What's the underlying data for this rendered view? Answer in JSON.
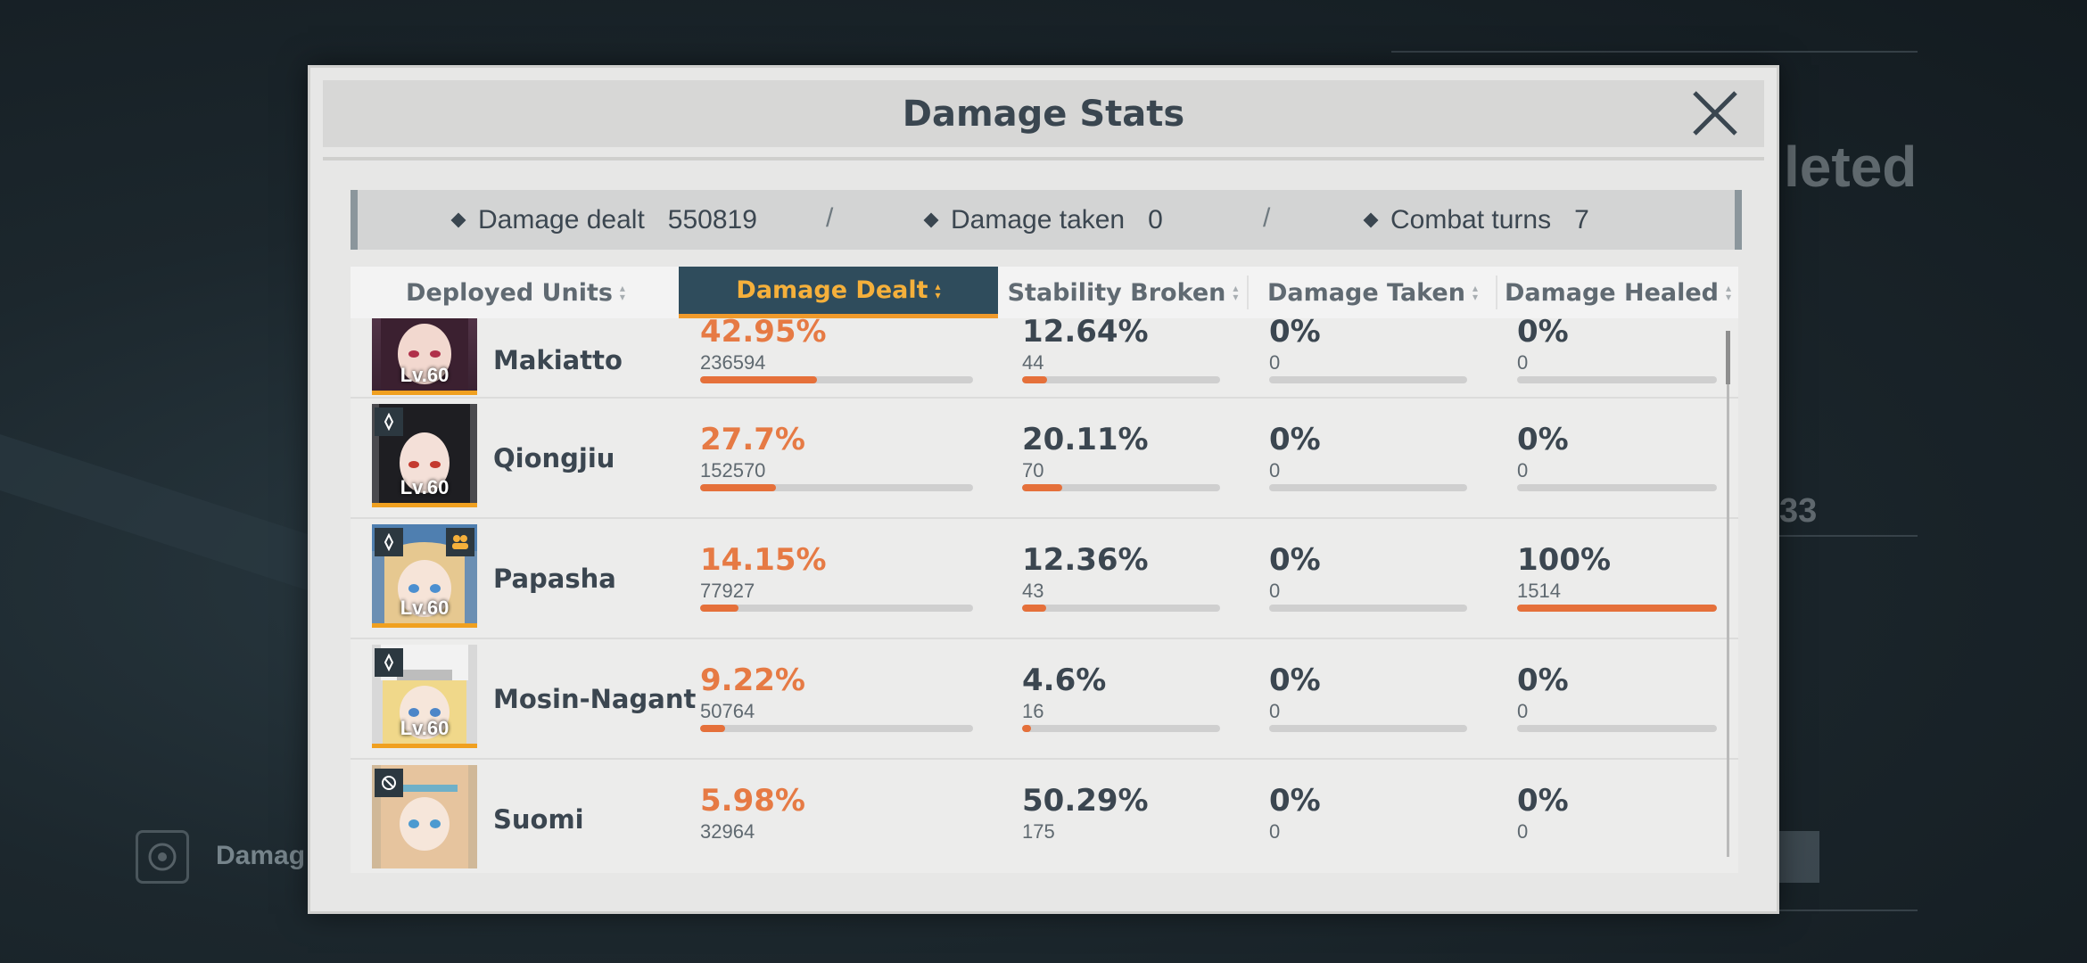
{
  "modal": {
    "title": "Damage Stats"
  },
  "summary": {
    "damage_dealt_label": "Damage dealt",
    "damage_dealt_value": "550819",
    "damage_taken_label": "Damage taken",
    "damage_taken_value": "0",
    "combat_turns_label": "Combat turns",
    "combat_turns_value": "7",
    "separator": "/"
  },
  "columns": [
    {
      "label": "Deployed Units",
      "active": false
    },
    {
      "label": "Damage Dealt",
      "active": true
    },
    {
      "label": "Stability Broken",
      "active": false
    },
    {
      "label": "Damage Taken",
      "active": false
    },
    {
      "label": "Damage Healed",
      "active": false
    }
  ],
  "rows": [
    {
      "name": "Makiatto",
      "level": "Lv.60",
      "dealt_pct": "42.95%",
      "dealt_val": "236594",
      "dealt_frac": 0.4295,
      "stab_pct": "12.64%",
      "stab_val": "44",
      "stab_frac": 0.1264,
      "taken_pct": "0%",
      "taken_val": "0",
      "taken_frac": 0,
      "healed_pct": "0%",
      "healed_val": "0",
      "healed_frac": 0
    },
    {
      "name": "Qiongjiu",
      "level": "Lv.60",
      "dealt_pct": "27.7%",
      "dealt_val": "152570",
      "dealt_frac": 0.277,
      "stab_pct": "20.11%",
      "stab_val": "70",
      "stab_frac": 0.2011,
      "taken_pct": "0%",
      "taken_val": "0",
      "taken_frac": 0,
      "healed_pct": "0%",
      "healed_val": "0",
      "healed_frac": 0
    },
    {
      "name": "Papasha",
      "level": "Lv.60",
      "dealt_pct": "14.15%",
      "dealt_val": "77927",
      "dealt_frac": 0.1415,
      "stab_pct": "12.36%",
      "stab_val": "43",
      "stab_frac": 0.1236,
      "taken_pct": "0%",
      "taken_val": "0",
      "taken_frac": 0,
      "healed_pct": "100%",
      "healed_val": "1514",
      "healed_frac": 1.0
    },
    {
      "name": "Mosin-Nagant",
      "level": "Lv.60",
      "dealt_pct": "9.22%",
      "dealt_val": "50764",
      "dealt_frac": 0.0922,
      "stab_pct": "4.6%",
      "stab_val": "16",
      "stab_frac": 0.046,
      "taken_pct": "0%",
      "taken_val": "0",
      "taken_frac": 0,
      "healed_pct": "0%",
      "healed_val": "0",
      "healed_frac": 0
    },
    {
      "name": "Suomi",
      "level": "",
      "dealt_pct": "5.98%",
      "dealt_val": "32964",
      "dealt_frac": 0.0598,
      "stab_pct": "50.29%",
      "stab_val": "175",
      "stab_frac": 0.5029,
      "taken_pct": "0%",
      "taken_val": "0",
      "taken_frac": 0,
      "healed_pct": "0%",
      "healed_val": "0",
      "healed_frac": 0
    }
  ],
  "background": {
    "big_text": "leted",
    "num_text": "33",
    "bottom_label": "Damag"
  },
  "colors": {
    "accent_orange": "#e5703a",
    "active_tab_bg": "#2f4c5c",
    "active_tab_text": "#f5b03b"
  }
}
